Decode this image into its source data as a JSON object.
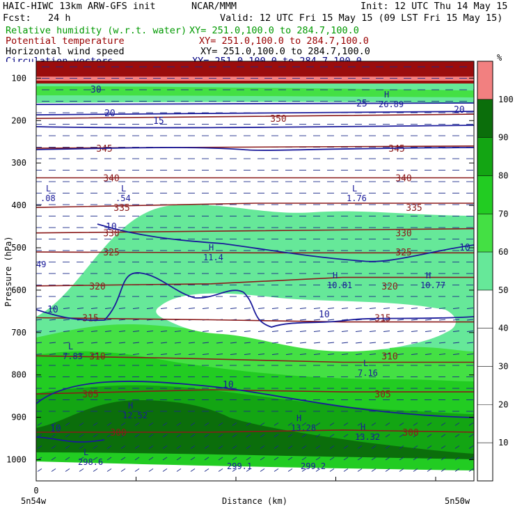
{
  "header": {
    "model": "HAIC-HIWC 13km ARW-GFS init",
    "org": "NCAR/MMM",
    "init": "Init: 12 UTC Thu 14 May 15",
    "fcst": "Fcst:   24 h",
    "valid": "Valid: 12 UTC Fri 15 May 15 (09 LST Fri 15 May 15)"
  },
  "legend": [
    {
      "field": "Relative humidity (w.r.t. water)",
      "xy": "XY= 251.0,100.0 to 284.7,100.0",
      "color": "#009900"
    },
    {
      "field": "Potential temperature",
      "xy": "XY= 251.0,100.0 to 284.7,100.0",
      "color": "#990000"
    },
    {
      "field": "Horizontal wind speed",
      "xy": "XY= 251.0,100.0 to 284.7,100.0",
      "color": "#000000"
    },
    {
      "field": "Circulation vectors",
      "xy": "XY= 251.0,100.0 to 284.7,100.0",
      "color": "#000080"
    }
  ],
  "chart_data": {
    "type": "heatmap",
    "xlabel": "Distance (km)",
    "ylabel": "Pressure (hPa)",
    "x_ticks": [
      "0"
    ],
    "x_endpoints": [
      "5n54w",
      "5n50w"
    ],
    "y_ticks": [
      100,
      200,
      300,
      400,
      500,
      600,
      700,
      800,
      900,
      1000
    ],
    "ylim": [
      1050,
      60
    ],
    "colorbar": {
      "unit": "%",
      "ticks": [
        10,
        20,
        30,
        40,
        50,
        60,
        70,
        80,
        90,
        100
      ],
      "bins": [
        {
          "from": 0,
          "to": 50,
          "color": "#ffffff"
        },
        {
          "from": 50,
          "to": 60,
          "color": "#66e899"
        },
        {
          "from": 60,
          "to": 70,
          "color": "#44e044"
        },
        {
          "from": 70,
          "to": 80,
          "color": "#22cc22"
        },
        {
          "from": 80,
          "to": 90,
          "color": "#13a513"
        },
        {
          "from": 90,
          "to": 100,
          "color": "#0b6e0b"
        },
        {
          "from": 100,
          "to": 110,
          "color": "#f28080"
        }
      ]
    },
    "theta_contours": [
      {
        "label": "300",
        "values": [
          [
            0,
            935
          ],
          [
            40,
            935
          ],
          [
            70,
            930
          ],
          [
            100,
            935
          ]
        ]
      },
      {
        "label": "305",
        "values": [
          [
            0,
            845
          ],
          [
            40,
            835
          ],
          [
            70,
            840
          ],
          [
            100,
            840
          ]
        ]
      },
      {
        "label": "310",
        "values": [
          [
            0,
            755
          ],
          [
            30,
            760
          ],
          [
            70,
            770
          ],
          [
            100,
            770
          ]
        ]
      },
      {
        "label": "315",
        "values": [
          [
            0,
            665
          ],
          [
            40,
            670
          ],
          [
            70,
            675
          ],
          [
            100,
            675
          ]
        ]
      },
      {
        "label": "320",
        "values": [
          [
            0,
            590
          ],
          [
            40,
            585
          ],
          [
            70,
            570
          ],
          [
            100,
            570
          ]
        ]
      },
      {
        "label": "325",
        "values": [
          [
            0,
            510
          ],
          [
            50,
            512
          ],
          [
            100,
            512
          ]
        ]
      },
      {
        "label": "330",
        "values": [
          [
            0,
            465
          ],
          [
            50,
            460
          ],
          [
            100,
            455
          ]
        ]
      },
      {
        "label": "335",
        "values": [
          [
            0,
            405
          ],
          [
            50,
            395
          ],
          [
            100,
            395
          ]
        ]
      },
      {
        "label": "340",
        "values": [
          [
            0,
            335
          ],
          [
            50,
            335
          ],
          [
            100,
            335
          ]
        ]
      },
      {
        "label": "345",
        "values": [
          [
            0,
            265
          ],
          [
            60,
            262
          ],
          [
            100,
            260
          ]
        ]
      },
      {
        "label": "350",
        "values": [
          [
            0,
            195
          ],
          [
            50,
            190
          ],
          [
            100,
            185
          ]
        ]
      }
    ],
    "wind_contours": [
      {
        "label": "10"
      },
      {
        "label": "15"
      },
      {
        "label": "20"
      },
      {
        "label": "25"
      },
      {
        "label": "30"
      }
    ],
    "annotations": [
      {
        "text": "L",
        "value": ".08"
      },
      {
        "text": "L",
        "value": ".54"
      },
      {
        "text": "L",
        "value": "1.76"
      },
      {
        "text": "H",
        "value": "11.4"
      },
      {
        "text": "H",
        "value": "10.81"
      },
      {
        "text": "H",
        "value": "10.77"
      },
      {
        "text": "L",
        "value": "7.83"
      },
      {
        "text": "L",
        "value": "7.16"
      },
      {
        "text": "H",
        "value": "12.52"
      },
      {
        "text": "H",
        "value": "13.28"
      },
      {
        "text": "H",
        "value": "13.32"
      },
      {
        "text": "H",
        "value": "26.89"
      },
      {
        "text": "L",
        "value": "298.6"
      },
      {
        "text": "",
        "value": "299.1"
      },
      {
        "text": "",
        "value": "299.2"
      },
      {
        "text": "",
        "value": "49"
      }
    ]
  }
}
